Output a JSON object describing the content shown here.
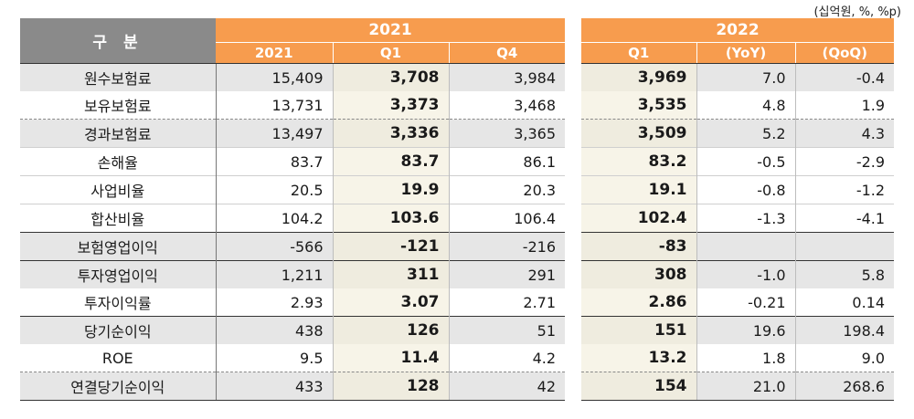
{
  "unit_note": "(십억원, %, %p)",
  "header": {
    "gubun": "구 분",
    "left_year": "2021",
    "left_cols": [
      "2021",
      "Q1",
      "Q4"
    ],
    "right_year": "2022",
    "right_cols": [
      "Q1",
      "(YoY)",
      "(QoQ)"
    ]
  },
  "rows": [
    {
      "label": "원수보험료",
      "y2021": "15,409",
      "q1": "3,708",
      "q4": "3,984",
      "q1_22": "3,969",
      "yoy": "7.0",
      "qoq": "-0.4"
    },
    {
      "label": "보유보험료",
      "y2021": "13,731",
      "q1": "3,373",
      "q4": "3,468",
      "q1_22": "3,535",
      "yoy": "4.8",
      "qoq": "1.9"
    },
    {
      "label": "경과보험료",
      "y2021": "13,497",
      "q1": "3,336",
      "q4": "3,365",
      "q1_22": "3,509",
      "yoy": "5.2",
      "qoq": "4.3"
    },
    {
      "label": "손해율",
      "y2021": "83.7",
      "q1": "83.7",
      "q4": "86.1",
      "q1_22": "83.2",
      "yoy": "-0.5",
      "qoq": "-2.9"
    },
    {
      "label": "사업비율",
      "y2021": "20.5",
      "q1": "19.9",
      "q4": "20.3",
      "q1_22": "19.1",
      "yoy": "-0.8",
      "qoq": "-1.2"
    },
    {
      "label": "합산비율",
      "y2021": "104.2",
      "q1": "103.6",
      "q4": "106.4",
      "q1_22": "102.4",
      "yoy": "-1.3",
      "qoq": "-4.1"
    },
    {
      "label": "보험영업이익",
      "y2021": "-566",
      "q1": "-121",
      "q4": "-216",
      "q1_22": "-83",
      "yoy": "",
      "qoq": ""
    },
    {
      "label": "투자영업이익",
      "y2021": "1,211",
      "q1": "311",
      "q4": "291",
      "q1_22": "308",
      "yoy": "-1.0",
      "qoq": "5.8"
    },
    {
      "label": "투자이익률",
      "y2021": "2.93",
      "q1": "3.07",
      "q4": "2.71",
      "q1_22": "2.86",
      "yoy": "-0.21",
      "qoq": "0.14"
    },
    {
      "label": "당기순이익",
      "y2021": "438",
      "q1": "126",
      "q4": "51",
      "q1_22": "151",
      "yoy": "19.6",
      "qoq": "198.4"
    },
    {
      "label": "ROE",
      "y2021": "9.5",
      "q1": "11.4",
      "q4": "4.2",
      "q1_22": "13.2",
      "yoy": "1.8",
      "qoq": "9.0"
    },
    {
      "label": "연결당기순이익",
      "y2021": "433",
      "q1": "128",
      "q4": "42",
      "q1_22": "154",
      "yoy": "21.0",
      "qoq": "268.6"
    }
  ]
}
